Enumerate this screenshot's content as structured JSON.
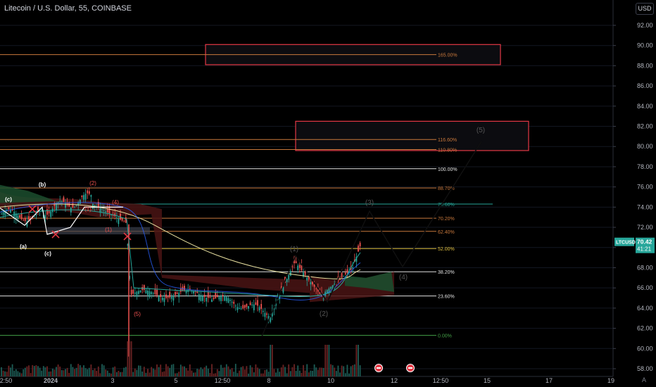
{
  "header": {
    "title": "Litecoin / U.S. Dollar, 55, COINBASE",
    "currency_button": "USD"
  },
  "price_tag": {
    "symbol": "LTCUSD",
    "price": "70.42",
    "countdown": "41:21",
    "color": "#26a69a"
  },
  "auto_label": "A",
  "chart_data": {
    "type": "candlestick",
    "yaxis": {
      "range": [
        57.6,
        95.0
      ],
      "ticks": [
        58,
        60,
        62,
        64,
        66,
        68,
        70,
        72,
        74,
        76,
        78,
        80,
        82,
        84,
        86,
        88,
        90,
        92
      ]
    },
    "xaxis": {
      "ticks": [
        "12:50",
        "2024",
        "3",
        "5",
        "12:50",
        "8",
        "10",
        "12",
        "12:50",
        "15",
        "17",
        "19"
      ]
    },
    "fib_levels": [
      {
        "label": "165.00%",
        "price": 89.1,
        "color": "#c8783c"
      },
      {
        "label": "116.60%",
        "price": 80.7,
        "color": "#c8783c"
      },
      {
        "label": "110.80%",
        "price": 79.7,
        "color": "#c8783c"
      },
      {
        "label": "100.00%",
        "price": 77.8,
        "color": "#e0e0e0"
      },
      {
        "label": "88.70%",
        "price": 75.9,
        "color": "#c8783c"
      },
      {
        "label": "78.60%",
        "price": 74.3,
        "color": "#26a69a"
      },
      {
        "label": "70.20%",
        "price": 72.9,
        "color": "#c8783c"
      },
      {
        "label": "62.40%",
        "price": 71.6,
        "color": "#c8783c"
      },
      {
        "label": "52.00%",
        "price": 69.9,
        "color": "#e0c040"
      },
      {
        "label": "38.20%",
        "price": 67.6,
        "color": "#e0e0e0"
      },
      {
        "label": "23.60%",
        "price": 65.2,
        "color": "#e0e0e0"
      },
      {
        "label": "0.00%",
        "price": 61.3,
        "color": "#43a047"
      }
    ],
    "target_boxes": [
      {
        "price_top": 90.1,
        "price_bottom": 88.1
      },
      {
        "price_top": 82.5,
        "price_bottom": 79.6
      }
    ],
    "wave_labels": [
      "(b)",
      "(c)",
      "(a)",
      "(c)",
      "(2)",
      "(1)",
      "(4)",
      "(1)",
      "(5)",
      "(1)",
      "(2)",
      "(3)",
      "(4)",
      "(5)"
    ],
    "projection_path": [
      {
        "x_bar": 0,
        "price": 61.2
      },
      {
        "x_bar": 1,
        "price": 69.2
      },
      {
        "x_bar": 2,
        "price": 64.6
      },
      {
        "x_bar": 3,
        "price": 73.6
      },
      {
        "x_bar": 4,
        "price": 68.1
      },
      {
        "x_bar": 5,
        "price": 80.5
      }
    ]
  }
}
